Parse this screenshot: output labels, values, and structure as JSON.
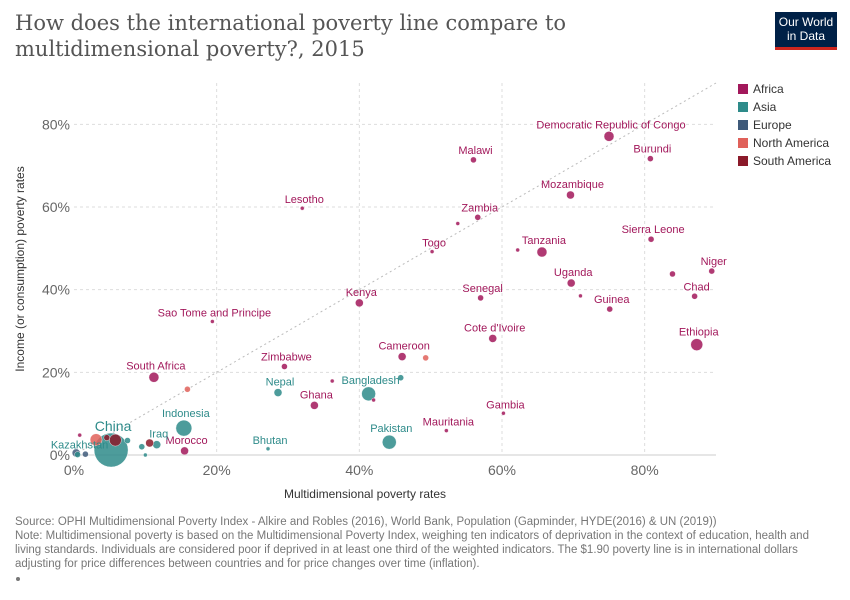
{
  "title": "How does the international poverty line compare to multidimensional poverty?, 2015",
  "logo": {
    "line1": "Our World",
    "line2": "in Data"
  },
  "footer": {
    "source": "Source: OPHI Multidimensional Poverty Index - Alkire and Robles (2016), World Bank, Population (Gapminder, HYDE(2016) & UN (2019))",
    "note": "Note: Multidimensional poverty is based on the Multidimensional Poverty Index, weighing ten indicators of deprivation in the context of education, health and living standards. Individuals are considered poor if deprived in at least one third of the weighted indicators. The $1.90 poverty line is in international dollars adjusting for price differences between countries and for price changes over time (inflation)."
  },
  "chart_data": {
    "type": "scatter",
    "xlabel": "Multidimensional poverty rates",
    "ylabel": "Income (or consumption) poverty rates",
    "xlim": [
      0,
      90
    ],
    "ylim": [
      0,
      90
    ],
    "xticks": [
      0,
      20,
      40,
      60,
      80
    ],
    "yticks": [
      0,
      20,
      40,
      60,
      80
    ],
    "tick_format": "percent",
    "grid": true,
    "reference_line": "y = x (dotted diagonal)",
    "legend_position": "top-right",
    "colors": {
      "Africa": "#a2185b",
      "Asia": "#2e8b8a",
      "Europe": "#3f5a7a",
      "North America": "#e0615a",
      "South America": "#8b1a2a"
    },
    "legend": [
      "Africa",
      "Asia",
      "Europe",
      "North America",
      "South America"
    ],
    "points": [
      {
        "label": "Democratic Republic of Congo",
        "region": "Africa",
        "x": 75,
        "y": 77.1,
        "size": 5
      },
      {
        "label": "Burundi",
        "region": "Africa",
        "x": 80.8,
        "y": 71.7,
        "size": 3
      },
      {
        "label": "Malawi",
        "region": "Africa",
        "x": 56,
        "y": 71.4,
        "size": 3
      },
      {
        "label": "Mozambique",
        "region": "Africa",
        "x": 69.6,
        "y": 62.9,
        "size": 4
      },
      {
        "label": "Lesotho",
        "region": "Africa",
        "x": 32,
        "y": 59.7,
        "size": 2
      },
      {
        "label": "Zambia",
        "region": "Africa",
        "x": 56.6,
        "y": 57.5,
        "size": 3
      },
      {
        "label": "",
        "region": "Africa",
        "x": 53.8,
        "y": 56,
        "size": 2
      },
      {
        "label": "Sierra Leone",
        "region": "Africa",
        "x": 80.9,
        "y": 52.2,
        "size": 3
      },
      {
        "label": "Togo",
        "region": "Africa",
        "x": 50.2,
        "y": 49.2,
        "size": 2
      },
      {
        "label": "Tanzania",
        "region": "Africa",
        "x": 65.6,
        "y": 49.1,
        "size": 5
      },
      {
        "label": "",
        "region": "Africa",
        "x": 62.2,
        "y": 49.6,
        "size": 2
      },
      {
        "label": "Niger",
        "region": "Africa",
        "x": 89.4,
        "y": 44.5,
        "size": 3
      },
      {
        "label": "",
        "region": "Africa",
        "x": 83.9,
        "y": 43.8,
        "size": 3
      },
      {
        "label": "Uganda",
        "region": "Africa",
        "x": 69.7,
        "y": 41.6,
        "size": 4
      },
      {
        "label": "Chad",
        "region": "Africa",
        "x": 87,
        "y": 38.4,
        "size": 3
      },
      {
        "label": "Senegal",
        "region": "Africa",
        "x": 57,
        "y": 38,
        "size": 3
      },
      {
        "label": "",
        "region": "Africa",
        "x": 71,
        "y": 38.5,
        "size": 2
      },
      {
        "label": "Guinea",
        "region": "Africa",
        "x": 75.1,
        "y": 35.3,
        "size": 3
      },
      {
        "label": "Kenya",
        "region": "Africa",
        "x": 40,
        "y": 36.8,
        "size": 4
      },
      {
        "label": "Sao Tome and Principe",
        "region": "Africa",
        "x": 19.4,
        "y": 32.3,
        "size": 2
      },
      {
        "label": "Cote d'Ivoire",
        "region": "Africa",
        "x": 58.7,
        "y": 28.2,
        "size": 4
      },
      {
        "label": "Ethiopia",
        "region": "Africa",
        "x": 87.3,
        "y": 26.7,
        "size": 6
      },
      {
        "label": "Cameroon",
        "region": "Africa",
        "x": 46,
        "y": 23.8,
        "size": 4
      },
      {
        "label": "Zimbabwe",
        "region": "Africa",
        "x": 29.5,
        "y": 21.4,
        "size": 3
      },
      {
        "label": "South Africa",
        "region": "Africa",
        "x": 11.2,
        "y": 18.8,
        "size": 5
      },
      {
        "label": "",
        "region": "Africa",
        "x": 36.2,
        "y": 17.9,
        "size": 2
      },
      {
        "label": "Ghana",
        "region": "Africa",
        "x": 33.7,
        "y": 12,
        "size": 4
      },
      {
        "label": "",
        "region": "Africa",
        "x": 42,
        "y": 13.3,
        "size": 2
      },
      {
        "label": "Gambia",
        "region": "Africa",
        "x": 60.2,
        "y": 10.1,
        "size": 2
      },
      {
        "label": "Mauritania",
        "region": "Africa",
        "x": 52.2,
        "y": 5.9,
        "size": 2
      },
      {
        "label": "Morocco",
        "region": "Africa",
        "x": 15.5,
        "y": 1,
        "size": 4
      },
      {
        "label": "",
        "region": "Africa",
        "x": 0.8,
        "y": 4.8,
        "size": 2
      },
      {
        "label": "Bangladesh",
        "region": "Asia",
        "x": 41.3,
        "y": 14.8,
        "size": 7
      },
      {
        "label": "",
        "region": "Asia",
        "x": 45.8,
        "y": 18.7,
        "size": 3
      },
      {
        "label": "Nepal",
        "region": "Asia",
        "x": 28.6,
        "y": 15.1,
        "size": 4
      },
      {
        "label": "Indonesia",
        "region": "Asia",
        "x": 15.4,
        "y": 6.5,
        "size": 8
      },
      {
        "label": "Pakistan",
        "region": "Asia",
        "x": 44.2,
        "y": 3.1,
        "size": 7
      },
      {
        "label": "Bhutan",
        "region": "Asia",
        "x": 27.2,
        "y": 1.5,
        "size": 2
      },
      {
        "label": "Iraq",
        "region": "Asia",
        "x": 11.6,
        "y": 2.5,
        "size": 4
      },
      {
        "label": "China",
        "region": "Asia",
        "x": 5.2,
        "y": 1.2,
        "size": 17
      },
      {
        "label": "Kazakhstan",
        "region": "Asia",
        "x": 0.5,
        "y": 0.1,
        "size": 3
      },
      {
        "label": "",
        "region": "Asia",
        "x": 9.5,
        "y": 2,
        "size": 3
      },
      {
        "label": "",
        "region": "Asia",
        "x": 10,
        "y": 0,
        "size": 2
      },
      {
        "label": "",
        "region": "Asia",
        "x": 7.5,
        "y": 3.5,
        "size": 3
      },
      {
        "label": "",
        "region": "Europe",
        "x": 0.3,
        "y": 0.5,
        "size": 4
      },
      {
        "label": "",
        "region": "Europe",
        "x": 1.6,
        "y": 0.2,
        "size": 3
      },
      {
        "label": "",
        "region": "North America",
        "x": 49.3,
        "y": 23.5,
        "size": 3
      },
      {
        "label": "",
        "region": "North America",
        "x": 15.9,
        "y": 15.9,
        "size": 3
      },
      {
        "label": "",
        "region": "North America",
        "x": 3.1,
        "y": 3.7,
        "size": 6
      },
      {
        "label": "",
        "region": "South America",
        "x": 5.8,
        "y": 3.6,
        "size": 6
      },
      {
        "label": "",
        "region": "South America",
        "x": 10.6,
        "y": 2.9,
        "size": 4
      },
      {
        "label": "",
        "region": "South America",
        "x": 4.6,
        "y": 4.2,
        "size": 3
      }
    ]
  }
}
